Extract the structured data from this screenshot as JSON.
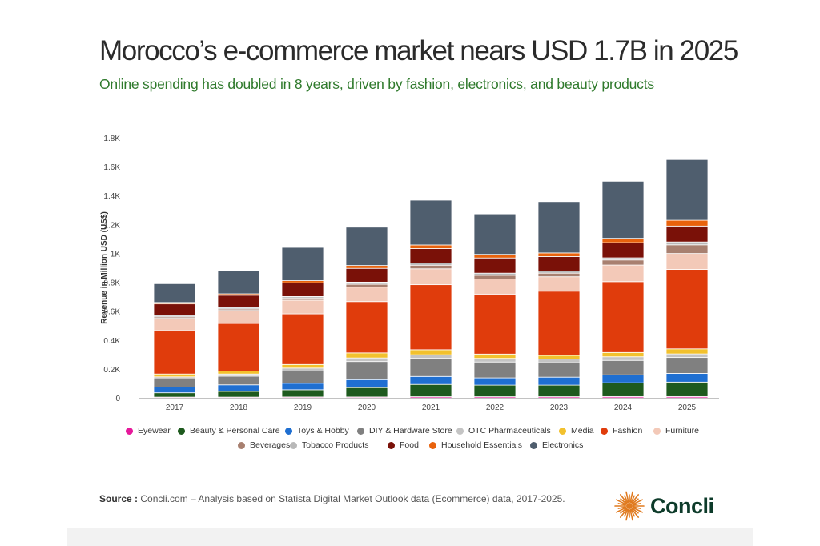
{
  "title": "Morocco’s e-commerce market nears USD 1.7B in 2025",
  "subtitle": "Online spending has doubled in 8 years, driven by fashion, electronics, and beauty products",
  "source": {
    "label": "Source :",
    "text": " Concli.com – Analysis based on Statista Digital Market Outlook data (Ecommerce) data, 2017-2025."
  },
  "logo": {
    "text": "Concli",
    "icon": "sunburst-logo-icon",
    "color": "#e07a1f"
  },
  "chart_data": {
    "type": "bar",
    "stacked": true,
    "ylabel": "Revenue in Million USD (US$)",
    "xlabel": "",
    "ylim": [
      0,
      1800
    ],
    "yticks": [
      0,
      200,
      400,
      600,
      800,
      1000,
      1200,
      1400,
      1600,
      1800
    ],
    "ytick_labels": [
      "0",
      "0.2K",
      "0.4K",
      "0.6K",
      "0.8K",
      "1K",
      "1.2K",
      "1.4K",
      "1.6K",
      "1.8K"
    ],
    "grid": false,
    "legend_position": "bottom",
    "categories": [
      "2017",
      "2018",
      "2019",
      "2020",
      "2021",
      "2022",
      "2023",
      "2024",
      "2025"
    ],
    "series": [
      {
        "name": "Eyewear",
        "color": "#e6199b",
        "values": [
          5,
          5,
          6,
          6,
          8,
          8,
          8,
          9,
          9
        ]
      },
      {
        "name": "Beauty & Personal Care",
        "color": "#1e5a1e",
        "values": [
          30,
          40,
          50,
          65,
          85,
          80,
          80,
          95,
          100
        ]
      },
      {
        "name": "Toys & Hobby",
        "color": "#1f6fd1",
        "values": [
          40,
          45,
          45,
          55,
          55,
          50,
          55,
          55,
          60
        ]
      },
      {
        "name": "DIY & Hardware Store",
        "color": "#808080",
        "values": [
          55,
          60,
          85,
          125,
          125,
          110,
          100,
          100,
          110
        ]
      },
      {
        "name": "OTC Pharmaceuticals",
        "color": "#c4c4c4",
        "values": [
          15,
          15,
          20,
          25,
          25,
          25,
          25,
          25,
          25
        ]
      },
      {
        "name": "Media",
        "color": "#f2c12e",
        "values": [
          20,
          20,
          25,
          35,
          35,
          30,
          25,
          30,
          35
        ]
      },
      {
        "name": "Fashion",
        "color": "#e03c0c",
        "values": [
          300,
          330,
          350,
          355,
          450,
          415,
          445,
          490,
          550
        ]
      },
      {
        "name": "Furniture",
        "color": "#f3c9b8",
        "values": [
          85,
          90,
          95,
          100,
          110,
          105,
          100,
          115,
          110
        ]
      },
      {
        "name": "Beverages",
        "color": "#a88070",
        "values": [
          10,
          10,
          15,
          20,
          25,
          25,
          25,
          35,
          60
        ]
      },
      {
        "name": "Tobacco Products",
        "color": "#b8b8b8",
        "values": [
          10,
          10,
          10,
          15,
          15,
          15,
          15,
          15,
          20
        ]
      },
      {
        "name": "Food",
        "color": "#7a1108",
        "values": [
          80,
          85,
          95,
          95,
          100,
          105,
          100,
          105,
          110
        ]
      },
      {
        "name": "Household Essentials",
        "color": "#e8620c",
        "values": [
          10,
          10,
          15,
          20,
          25,
          25,
          25,
          30,
          40
        ]
      },
      {
        "name": "Electronics",
        "color": "#4f5e6e",
        "values": [
          130,
          160,
          230,
          265,
          310,
          280,
          355,
          395,
          420
        ]
      }
    ]
  }
}
